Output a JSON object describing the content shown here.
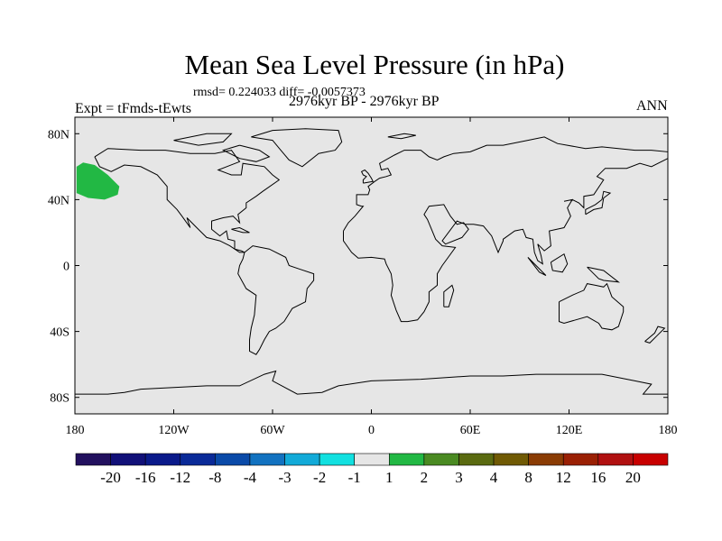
{
  "title": "Mean Sea Level Pressure (in hPa)",
  "stats": "rmsd= 0.224033 diff= -0.0057373",
  "left_label": "Expt = tFmds-tEwts",
  "center_label": "2976kyr BP - 2976kyr BP",
  "right_label": "ANN",
  "lat_ticks": [
    {
      "value": 80,
      "label": "80N"
    },
    {
      "value": 40,
      "label": "40N"
    },
    {
      "value": 0,
      "label": "0"
    },
    {
      "value": -40,
      "label": "40S"
    },
    {
      "value": -80,
      "label": "80S"
    }
  ],
  "lon_ticks": [
    {
      "value": -180,
      "label": "180"
    },
    {
      "value": -120,
      "label": "120W"
    },
    {
      "value": -60,
      "label": "60W"
    },
    {
      "value": 0,
      "label": "0"
    },
    {
      "value": 60,
      "label": "60E"
    },
    {
      "value": 120,
      "label": "120E"
    },
    {
      "value": 180,
      "label": "180"
    }
  ],
  "colorbar": {
    "labels": [
      "-20",
      "-16",
      "-12",
      "-8",
      "-4",
      "-3",
      "-2",
      "-1",
      "1",
      "2",
      "3",
      "4",
      "8",
      "12",
      "16",
      "20"
    ],
    "colors": [
      "#22105e",
      "#111078",
      "#0a1a8a",
      "#0a2a98",
      "#0a4aa8",
      "#1272c0",
      "#12aad8",
      "#12e0e0",
      "#e6e6e6",
      "#22b844",
      "#4a8a22",
      "#5a6a10",
      "#705a04",
      "#8a3c04",
      "#9a2004",
      "#b01010",
      "#c80000"
    ]
  },
  "anomaly_region": {
    "value_range": "1 to 2",
    "color": "#22b844",
    "lon_range": [
      -179,
      -152
    ],
    "lat_range": [
      40,
      63
    ]
  },
  "map_background": "#e6e6e6"
}
